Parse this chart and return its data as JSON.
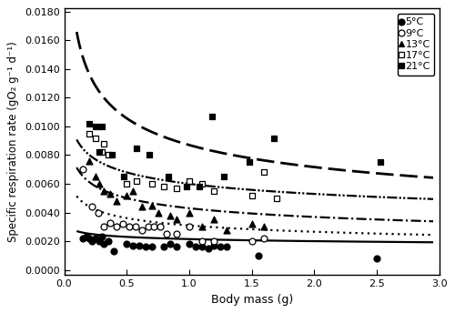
{
  "xlabel": "Body mass (g)",
  "ylabel": "Specific respiration rate (gO₂ g⁻¹ d⁻¹)",
  "xlim": [
    0.0,
    3.0
  ],
  "ylim": [
    -0.00035,
    0.0182
  ],
  "yticks": [
    0.0,
    0.002,
    0.004,
    0.006,
    0.008,
    0.01,
    0.012,
    0.014,
    0.016,
    0.018
  ],
  "xticks": [
    0.0,
    0.5,
    1.0,
    1.5,
    2.0,
    2.5,
    3.0
  ],
  "scatter_5C": {
    "x": [
      0.15,
      0.18,
      0.2,
      0.22,
      0.25,
      0.28,
      0.3,
      0.32,
      0.35,
      0.4,
      0.5,
      0.55,
      0.6,
      0.65,
      0.7,
      0.8,
      0.85,
      0.9,
      1.0,
      1.05,
      1.1,
      1.15,
      1.2,
      1.25,
      1.3,
      1.55,
      2.5
    ],
    "y": [
      0.0022,
      0.0023,
      0.0022,
      0.002,
      0.0022,
      0.002,
      0.0023,
      0.0018,
      0.002,
      0.0013,
      0.0018,
      0.0017,
      0.0017,
      0.0016,
      0.0016,
      0.0016,
      0.0018,
      0.0016,
      0.0018,
      0.0016,
      0.0016,
      0.0015,
      0.0017,
      0.0016,
      0.0016,
      0.001,
      0.0008
    ]
  },
  "scatter_9C": {
    "x": [
      0.15,
      0.22,
      0.27,
      0.32,
      0.37,
      0.42,
      0.47,
      0.52,
      0.57,
      0.62,
      0.67,
      0.72,
      0.77,
      0.82,
      0.9,
      1.0,
      1.1,
      1.2,
      1.5,
      1.6
    ],
    "y": [
      0.007,
      0.0044,
      0.004,
      0.003,
      0.0033,
      0.003,
      0.0032,
      0.003,
      0.003,
      0.0028,
      0.003,
      0.003,
      0.003,
      0.0025,
      0.0025,
      0.003,
      0.002,
      0.002,
      0.002,
      0.0022
    ]
  },
  "scatter_13C": {
    "x": [
      0.2,
      0.25,
      0.28,
      0.32,
      0.37,
      0.42,
      0.5,
      0.55,
      0.62,
      0.7,
      0.75,
      0.85,
      0.9,
      1.0,
      1.1,
      1.2,
      1.3,
      1.5,
      1.6
    ],
    "y": [
      0.0076,
      0.0065,
      0.006,
      0.0055,
      0.0053,
      0.0048,
      0.0052,
      0.0055,
      0.0044,
      0.0045,
      0.004,
      0.0038,
      0.0035,
      0.004,
      0.003,
      0.0035,
      0.0028,
      0.0032,
      0.003
    ]
  },
  "scatter_17C": {
    "x": [
      0.2,
      0.25,
      0.3,
      0.32,
      0.35,
      0.5,
      0.58,
      0.7,
      0.8,
      0.9,
      1.0,
      1.1,
      1.2,
      1.5,
      1.6,
      1.7
    ],
    "y": [
      0.0095,
      0.0092,
      0.0082,
      0.0088,
      0.008,
      0.006,
      0.0062,
      0.006,
      0.0058,
      0.0057,
      0.0062,
      0.006,
      0.0055,
      0.0052,
      0.0068,
      0.005
    ]
  },
  "scatter_21C": {
    "x": [
      0.2,
      0.25,
      0.28,
      0.3,
      0.38,
      0.48,
      0.58,
      0.68,
      0.83,
      0.98,
      1.08,
      1.18,
      1.28,
      1.48,
      1.68,
      2.53
    ],
    "y": [
      0.0102,
      0.01,
      0.0082,
      0.01,
      0.008,
      0.0065,
      0.0085,
      0.008,
      0.0065,
      0.0058,
      0.0058,
      0.0107,
      0.0065,
      0.0075,
      0.0092,
      0.0075
    ]
  },
  "fit_5C": {
    "a": 0.00215,
    "b": -0.1
  },
  "fit_9C": {
    "a": 0.0031,
    "b": -0.22
  },
  "fit_13C": {
    "a": 0.0043,
    "b": -0.22
  },
  "fit_17C": {
    "a": 0.006,
    "b": -0.18
  },
  "fit_21C": {
    "a": 0.0087,
    "b": -0.28
  },
  "marker_size": 5
}
